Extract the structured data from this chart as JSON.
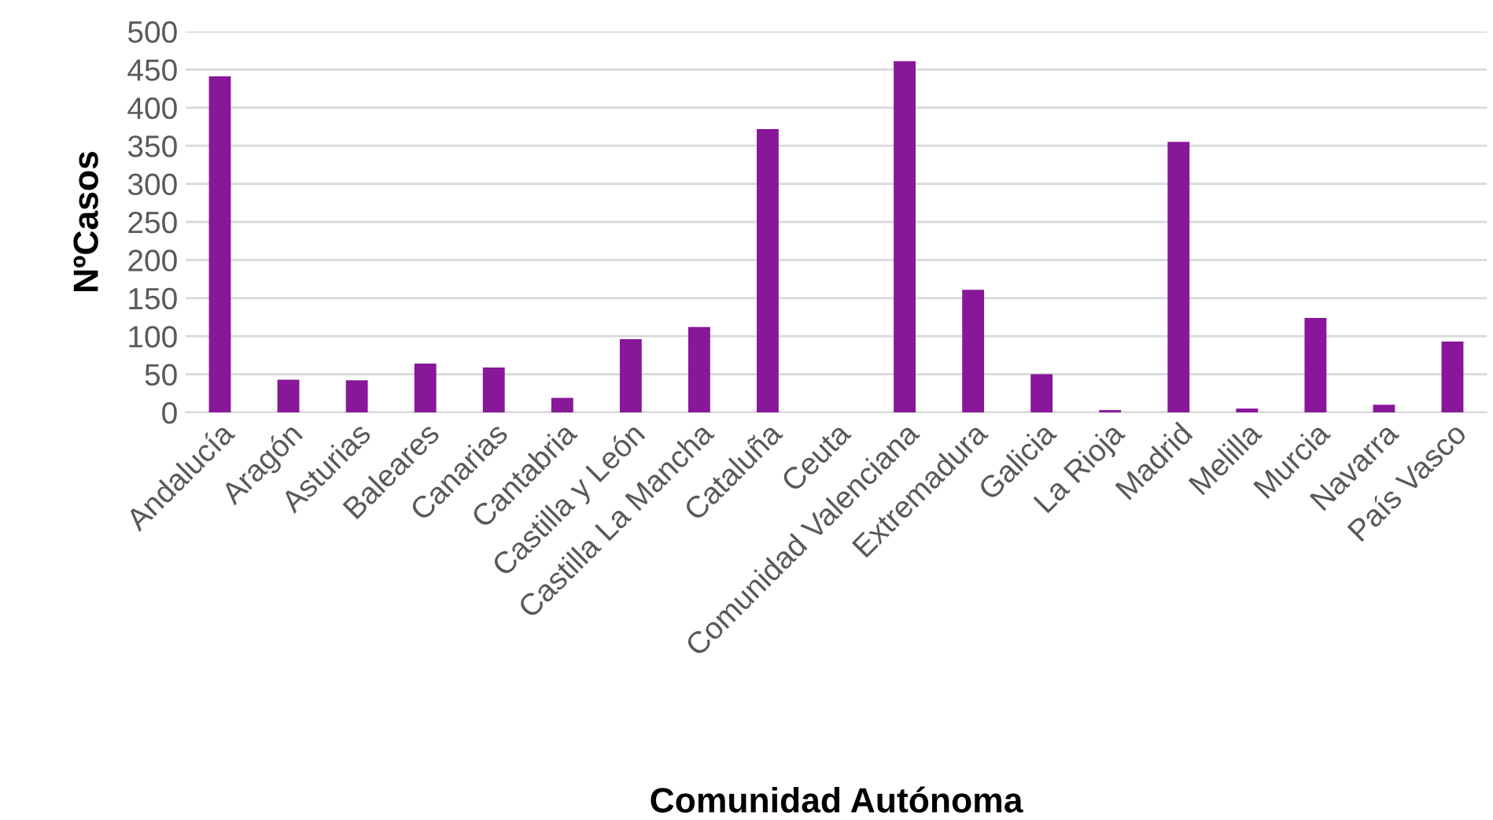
{
  "chart_data": {
    "type": "bar",
    "xlabel": "Comunidad Autónoma",
    "ylabel": "NºCasos",
    "categories": [
      "Andalucía",
      "Aragón",
      "Asturias",
      "Baleares",
      "Canarias",
      "Cantabria",
      "Castilla y León",
      "Castilla La Mancha",
      "Cataluña",
      "Ceuta",
      "Comunidad Valenciana",
      "Extremadura",
      "Galicia",
      "La Rioja",
      "Madrid",
      "Melilla",
      "Murcia",
      "Navarra",
      "País Vasco"
    ],
    "values": [
      441,
      43,
      42,
      64,
      59,
      19,
      96,
      112,
      372,
      0,
      461,
      161,
      50,
      3,
      355,
      5,
      124,
      10,
      93
    ],
    "color": "#88179a",
    "ylim": [
      0,
      500
    ],
    "yticks": [
      0,
      50,
      100,
      150,
      200,
      250,
      300,
      350,
      400,
      450,
      500
    ],
    "grid": "y"
  }
}
